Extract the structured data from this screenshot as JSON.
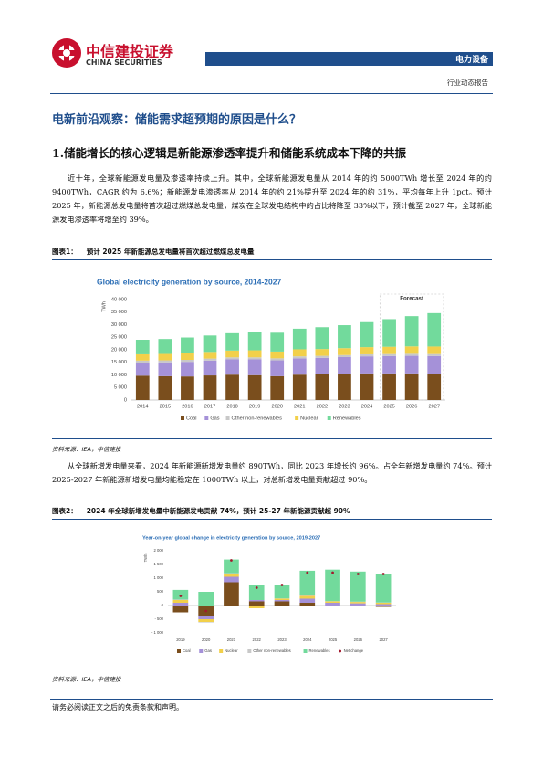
{
  "header": {
    "brand_cn": "中信建投证券",
    "brand_en": "CHINA SECURITIES",
    "sector": "电力设备",
    "report_type": "行业动态报告"
  },
  "title": "电新前沿观察：储能需求超预期的原因是什么？",
  "section_heading": "1.储能增长的核心逻辑是新能源渗透率提升和储能系统成本下降的共振",
  "paragraphs": [
    "近十年，全球新能源发电量及渗透率持续上升。其中，全球新能源发电量从 2014 年的约 5000TWh 增长至 2024 年的约 9400TWh，CAGR 约为 6.6%；新能源发电渗透率从 2014 年的约 21%提升至 2024 年的约 31%，平均每年上升 1pct。预计 2025 年，新能源总发电量将首次超过燃煤总发电量，煤炭在全球发电结构中的占比将降至 33%以下，预计截至 2027 年，全球新能源发电渗透率将增至约 39%。",
    "从全球新增发电量来看，2024 年新能源新增发电量约 890TWh，同比 2023 年增长约 96%。占全年新增发电量约 74%。预计 2025-2027 年新能源新增发电量均能稳定在 1000TWh 以上，对总新增发电量贡献超过 90%。"
  ],
  "figures": [
    {
      "label": "图表1：",
      "caption": "预计 2025 年新能源总发电量将首次超过燃煤总发电量",
      "source": "资料来源：IEA，中信建投"
    },
    {
      "label": "图表2：",
      "caption": "2024 年全球新增发电量中新能源发电贡献 74%，预计 25-27 年新能源贡献超 90%",
      "source": "资料来源：IEA，中信建投"
    }
  ],
  "footer": "请务必阅读正文之后的免责条款和声明。",
  "chart_data": [
    {
      "type": "bar",
      "stacked": true,
      "title": "Global electricity generation by source, 2014-2027",
      "y_label": "TWh",
      "annotation": "Forecast",
      "categories": [
        "2014",
        "2015",
        "2016",
        "2017",
        "2018",
        "2019",
        "2020",
        "2021",
        "2022",
        "2023",
        "2024",
        "2025",
        "2026",
        "2027"
      ],
      "series": [
        {
          "name": "Coal",
          "color": "#7a4e1d",
          "values": [
            9700,
            9500,
            9400,
            9800,
            10100,
            9900,
            9500,
            10100,
            10300,
            10500,
            10600,
            10600,
            10600,
            10500
          ]
        },
        {
          "name": "Gas",
          "color": "#a591d8",
          "values": [
            5200,
            5500,
            5800,
            5900,
            6100,
            6300,
            6300,
            6500,
            6500,
            6600,
            6800,
            6900,
            7000,
            7000
          ]
        },
        {
          "name": "Other non-renewables",
          "color": "#c8c8c8",
          "values": [
            800,
            800,
            800,
            800,
            800,
            800,
            800,
            800,
            800,
            800,
            800,
            800,
            800,
            800
          ]
        },
        {
          "name": "Nuclear",
          "color": "#f2d04a",
          "values": [
            2500,
            2550,
            2600,
            2650,
            2700,
            2800,
            2700,
            2800,
            2700,
            2750,
            2850,
            2900,
            2950,
            3000
          ]
        },
        {
          "name": "Renewables",
          "color": "#72da9c",
          "values": [
            5800,
            5950,
            6300,
            6550,
            6900,
            7200,
            7500,
            8200,
            8700,
            9150,
            9950,
            11000,
            12050,
            13300
          ]
        }
      ],
      "ylim": [
        0,
        40000
      ],
      "yticks": [
        0,
        {
          "value": 5000,
          "label": "5 000"
        },
        {
          "value": 10000,
          "label": "10 000"
        },
        {
          "value": 15000,
          "label": "15 000"
        },
        {
          "value": 20000,
          "label": "20 000"
        },
        {
          "value": 25000,
          "label": "25 000"
        },
        {
          "value": 30000,
          "label": "30 000"
        },
        {
          "value": 35000,
          "label": "35 000"
        },
        {
          "value": 40000,
          "label": "40 000"
        }
      ],
      "grid": false,
      "legend": "bottom"
    },
    {
      "type": "bar",
      "stacked": true,
      "title": "Year-on-year global change in electricity generation by source, 2019-2027",
      "y_label": "TWh",
      "categories": [
        "2019",
        "2020",
        "2021",
        "2022",
        "2023",
        "2024",
        "2025",
        "2026",
        "2027"
      ],
      "series": [
        {
          "name": "Coal",
          "color": "#7a4e1d",
          "values": [
            -250,
            -400,
            850,
            150,
            150,
            100,
            -20,
            -30,
            -50
          ]
        },
        {
          "name": "Gas",
          "color": "#a591d8",
          "values": [
            100,
            -100,
            200,
            50,
            50,
            150,
            100,
            80,
            50
          ]
        },
        {
          "name": "Nuclear",
          "color": "#f2d04a",
          "values": [
            100,
            -100,
            100,
            -100,
            50,
            100,
            50,
            50,
            50
          ]
        },
        {
          "name": "Other non-renewables",
          "color": "#c8c8c8",
          "values": [
            20,
            -20,
            30,
            0,
            10,
            20,
            10,
            10,
            10
          ]
        },
        {
          "name": "Renewables",
          "color": "#72da9c",
          "values": [
            350,
            500,
            500,
            550,
            500,
            900,
            1150,
            1100,
            1050
          ]
        },
        {
          "name": "Net change",
          "color": "#a3192e",
          "type": "scatter",
          "values": [
            350,
            -200,
            1650,
            650,
            750,
            1200,
            1200,
            1150,
            1150
          ]
        }
      ],
      "ylim": [
        -1000,
        2000
      ],
      "yticks": [
        {
          "value": -1000,
          "label": "- 1 000"
        },
        {
          "value": -500,
          "label": "- 500"
        },
        0,
        500,
        {
          "value": 1000,
          "label": "1 000"
        },
        {
          "value": 1500,
          "label": "1 500"
        },
        {
          "value": 2000,
          "label": "2 000"
        }
      ],
      "grid": false,
      "legend": "bottom"
    }
  ]
}
